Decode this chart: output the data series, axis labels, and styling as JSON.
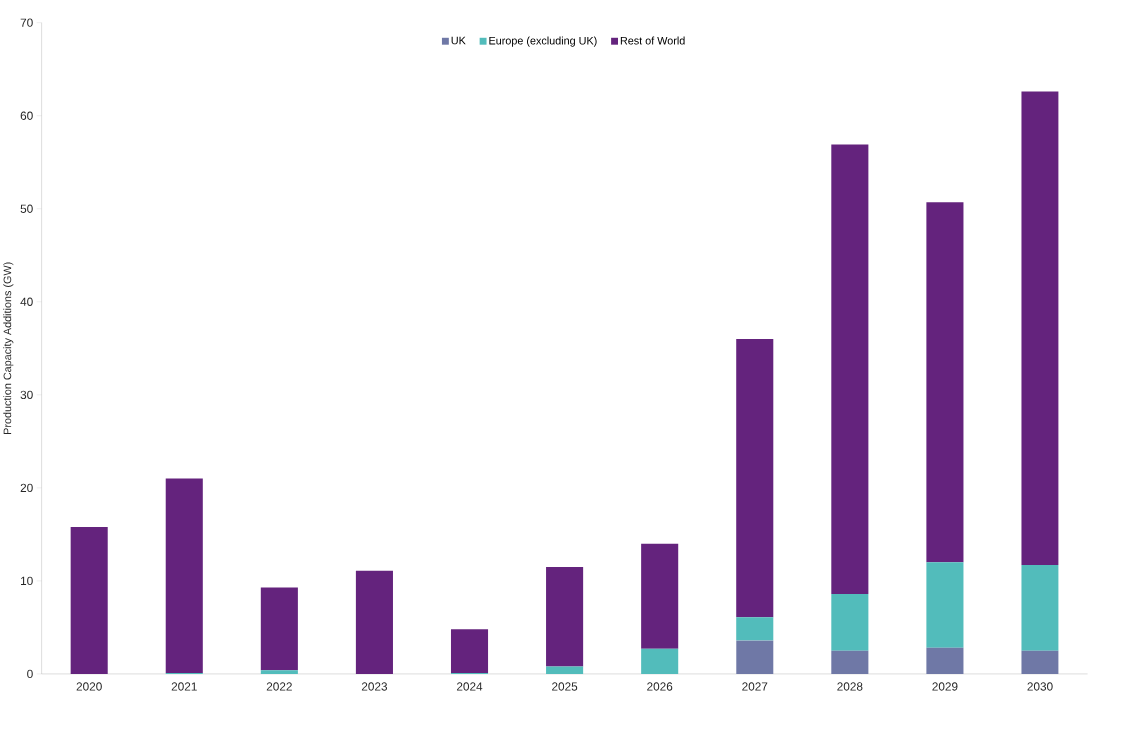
{
  "chart_data": {
    "type": "bar",
    "stacked": true,
    "ylabel": "Production Capacity Additions (GW)",
    "categories": [
      "2020",
      "2021",
      "2022",
      "2023",
      "2024",
      "2025",
      "2026",
      "2027",
      "2028",
      "2029",
      "2030"
    ],
    "series": [
      {
        "name": "UK",
        "color": "#6f78a6",
        "values": [
          0,
          0,
          0,
          0,
          0,
          0,
          0,
          3.6,
          2.5,
          2.8,
          2.5
        ]
      },
      {
        "name": "Europe (excluding UK)",
        "color": "#52bcbb",
        "values": [
          0,
          0.1,
          0.4,
          0,
          0.1,
          0.8,
          2.7,
          2.5,
          6.1,
          9.2,
          9.2
        ]
      },
      {
        "name": "Rest of World",
        "color": "#64237d",
        "values": [
          15.8,
          20.9,
          8.9,
          11.1,
          4.7,
          10.7,
          11.3,
          29.9,
          48.3,
          38.7,
          50.9
        ]
      }
    ],
    "ylim": [
      0,
      70
    ],
    "yticks": [
      0,
      10,
      20,
      30,
      40,
      50,
      60,
      70
    ],
    "grid": false,
    "legend": "top"
  }
}
